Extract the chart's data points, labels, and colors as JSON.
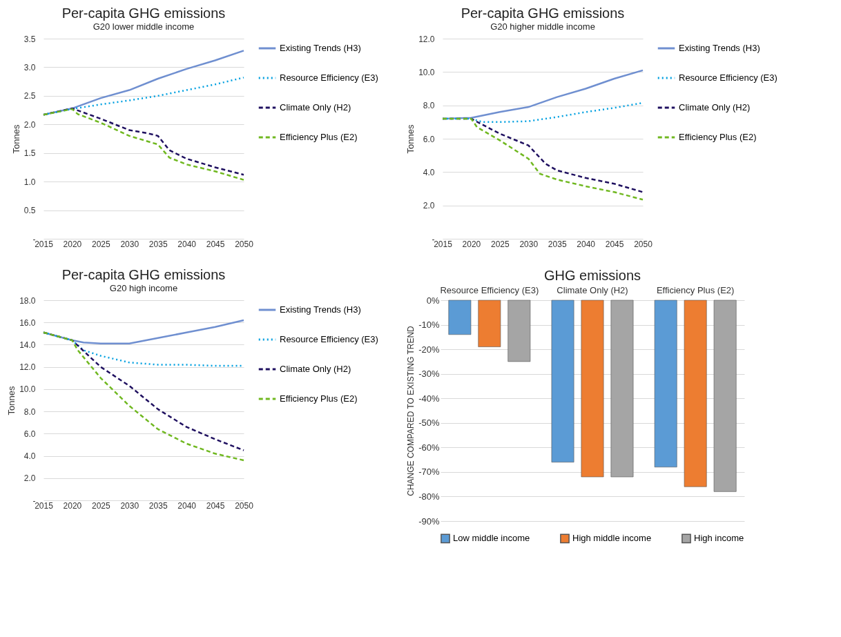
{
  "chart_data": [
    {
      "type": "line",
      "title": "Per-capita GHG emissions",
      "subtitle": "G20 lower middle income",
      "ylabel": "Tonnes",
      "xlim": [
        2015,
        2050
      ],
      "xticks": [
        2015,
        2020,
        2025,
        2030,
        2035,
        2040,
        2045,
        2050
      ],
      "ylim": [
        0,
        3.5
      ],
      "yticks": [
        {
          "value": 0,
          "label": "-"
        },
        0.5,
        {
          "value": 1,
          "label": "1.0"
        },
        1.5,
        {
          "value": 2,
          "label": "2.0"
        },
        2.5,
        {
          "value": 3,
          "label": "3.0"
        },
        3.5
      ],
      "grid": "y",
      "legend": "right",
      "marker": "none",
      "series": [
        {
          "name": "Existing Trends (H3)",
          "color": "#6f8fd0",
          "line_style": "solid",
          "x": [
            2015,
            2020,
            2025,
            2030,
            2035,
            2040,
            2045,
            2050
          ],
          "values": [
            2.17,
            2.28,
            2.46,
            2.6,
            2.8,
            2.97,
            3.12,
            3.29
          ]
        },
        {
          "name": "Resource Efficiency (E3)",
          "color": "#00a0e0",
          "line_style": "dotted",
          "x": [
            2015,
            2020,
            2025,
            2030,
            2035,
            2040,
            2045,
            2050
          ],
          "values": [
            2.17,
            2.27,
            2.35,
            2.42,
            2.5,
            2.6,
            2.7,
            2.82
          ]
        },
        {
          "name": "Climate Only (H2)",
          "color": "#1f1060",
          "line_style": "dashed",
          "x": [
            2015,
            2020,
            2025,
            2030,
            2033,
            2035,
            2037,
            2040,
            2045,
            2050
          ],
          "values": [
            2.17,
            2.28,
            2.1,
            1.9,
            1.85,
            1.8,
            1.55,
            1.4,
            1.25,
            1.12
          ]
        },
        {
          "name": "Efficiency Plus (E2)",
          "color": "#70b820",
          "line_style": "dashed",
          "x": [
            2015,
            2020,
            2021,
            2025,
            2030,
            2035,
            2037,
            2040,
            2045,
            2050
          ],
          "values": [
            2.17,
            2.27,
            2.18,
            2.03,
            1.8,
            1.65,
            1.42,
            1.3,
            1.18,
            1.03
          ]
        }
      ]
    },
    {
      "type": "line",
      "title": "Per-capita GHG emissions",
      "subtitle": "G20 higher middle income",
      "ylabel": "Tonnes",
      "xlim": [
        2015,
        2050
      ],
      "xticks": [
        2015,
        2020,
        2025,
        2030,
        2035,
        2040,
        2045,
        2050
      ],
      "ylim": [
        0,
        12
      ],
      "yticks": [
        {
          "value": 0,
          "label": "-"
        },
        {
          "value": 2,
          "label": "2.0"
        },
        {
          "value": 4,
          "label": "4.0"
        },
        {
          "value": 6,
          "label": "6.0"
        },
        {
          "value": 8,
          "label": "8.0"
        },
        {
          "value": 10,
          "label": "10.0"
        },
        {
          "value": 12,
          "label": "12.0"
        }
      ],
      "grid": "y",
      "legend": "right",
      "marker": "none",
      "series": [
        {
          "name": "Existing Trends (H3)",
          "color": "#6f8fd0",
          "line_style": "solid",
          "x": [
            2015,
            2020,
            2025,
            2030,
            2035,
            2040,
            2045,
            2050
          ],
          "values": [
            7.2,
            7.25,
            7.6,
            7.9,
            8.5,
            9.0,
            9.6,
            10.1
          ]
        },
        {
          "name": "Resource Efficiency (E3)",
          "color": "#00a0e0",
          "line_style": "dotted",
          "x": [
            2015,
            2020,
            2022,
            2025,
            2030,
            2035,
            2040,
            2045,
            2050
          ],
          "values": [
            7.2,
            7.2,
            7.0,
            7.0,
            7.05,
            7.3,
            7.6,
            7.85,
            8.15
          ]
        },
        {
          "name": "Climate Only (H2)",
          "color": "#1f1060",
          "line_style": "dashed",
          "x": [
            2015,
            2020,
            2025,
            2030,
            2033,
            2035,
            2040,
            2045,
            2050
          ],
          "values": [
            7.2,
            7.2,
            6.3,
            5.6,
            4.5,
            4.1,
            3.65,
            3.3,
            2.8
          ]
        },
        {
          "name": "Efficiency Plus (E2)",
          "color": "#70b820",
          "line_style": "dashed",
          "x": [
            2015,
            2020,
            2021,
            2025,
            2030,
            2032,
            2035,
            2040,
            2045,
            2050
          ],
          "values": [
            7.2,
            7.2,
            6.7,
            5.9,
            4.8,
            3.9,
            3.55,
            3.15,
            2.8,
            2.35
          ]
        }
      ]
    },
    {
      "type": "line",
      "title": "Per-capita GHG emissions",
      "subtitle": "G20 high income",
      "ylabel": "Tonnes",
      "xlim": [
        2015,
        2050
      ],
      "xticks": [
        2015,
        2020,
        2025,
        2030,
        2035,
        2040,
        2045,
        2050
      ],
      "ylim": [
        0,
        18
      ],
      "yticks": [
        {
          "value": 0,
          "label": "-"
        },
        {
          "value": 2,
          "label": "2.0"
        },
        {
          "value": 4,
          "label": "4.0"
        },
        {
          "value": 6,
          "label": "6.0"
        },
        {
          "value": 8,
          "label": "8.0"
        },
        {
          "value": 10,
          "label": "10.0"
        },
        {
          "value": 12,
          "label": "12.0"
        },
        {
          "value": 14,
          "label": "14.0"
        },
        {
          "value": 16,
          "label": "16.0"
        },
        {
          "value": 18,
          "label": "18.0"
        }
      ],
      "grid": "y",
      "legend": "right",
      "marker": "none",
      "series": [
        {
          "name": "Existing Trends (H3)",
          "color": "#6f8fd0",
          "line_style": "solid",
          "x": [
            2015,
            2020,
            2022,
            2025,
            2030,
            2035,
            2040,
            2045,
            2050
          ],
          "values": [
            15.1,
            14.4,
            14.2,
            14.1,
            14.1,
            14.6,
            15.1,
            15.6,
            16.2
          ]
        },
        {
          "name": "Resource Efficiency (E3)",
          "color": "#00a0e0",
          "line_style": "dotted",
          "x": [
            2015,
            2020,
            2022,
            2025,
            2030,
            2035,
            2040,
            2045,
            2050
          ],
          "values": [
            15.1,
            14.4,
            13.5,
            13.0,
            12.4,
            12.2,
            12.2,
            12.1,
            12.1
          ]
        },
        {
          "name": "Climate Only (H2)",
          "color": "#1f1060",
          "line_style": "dashed",
          "x": [
            2015,
            2020,
            2025,
            2030,
            2035,
            2040,
            2045,
            2050
          ],
          "values": [
            15.1,
            14.4,
            12.0,
            10.3,
            8.2,
            6.6,
            5.5,
            4.5
          ]
        },
        {
          "name": "Efficiency Plus (E2)",
          "color": "#70b820",
          "line_style": "dashed",
          "x": [
            2015,
            2020,
            2021,
            2025,
            2030,
            2035,
            2040,
            2045,
            2050
          ],
          "values": [
            15.1,
            14.4,
            13.5,
            11.0,
            8.5,
            6.4,
            5.1,
            4.2,
            3.6
          ]
        }
      ]
    },
    {
      "type": "bar",
      "title": "GHG emissions",
      "ylabel": "CHANGE COMPARED TO EXISTING TREND",
      "categories": [
        "Resource Efficiency (E3)",
        "Climate Only (H2)",
        "Efficiency Plus (E2)"
      ],
      "ylim": [
        -90,
        0
      ],
      "yticks": [
        {
          "value": 0,
          "label": "0%"
        },
        {
          "value": -10,
          "label": "-10%"
        },
        {
          "value": -20,
          "label": "-20%"
        },
        {
          "value": -30,
          "label": "-30%"
        },
        {
          "value": -40,
          "label": "-40%"
        },
        {
          "value": -50,
          "label": "-50%"
        },
        {
          "value": -60,
          "label": "-60%"
        },
        {
          "value": -70,
          "label": "-70%"
        },
        {
          "value": -80,
          "label": "-80%"
        },
        {
          "value": -90,
          "label": "-90%"
        }
      ],
      "grid": "y",
      "legend": "bottom",
      "series": [
        {
          "name": "Low middle income",
          "color": "#5b9bd5",
          "values": [
            -14,
            -66,
            -68
          ]
        },
        {
          "name": "High middle income",
          "color": "#ed7d31",
          "values": [
            -19,
            -72,
            -76
          ]
        },
        {
          "name": "High income",
          "color": "#a5a5a5",
          "values": [
            -25,
            -72,
            -78
          ]
        }
      ]
    }
  ]
}
